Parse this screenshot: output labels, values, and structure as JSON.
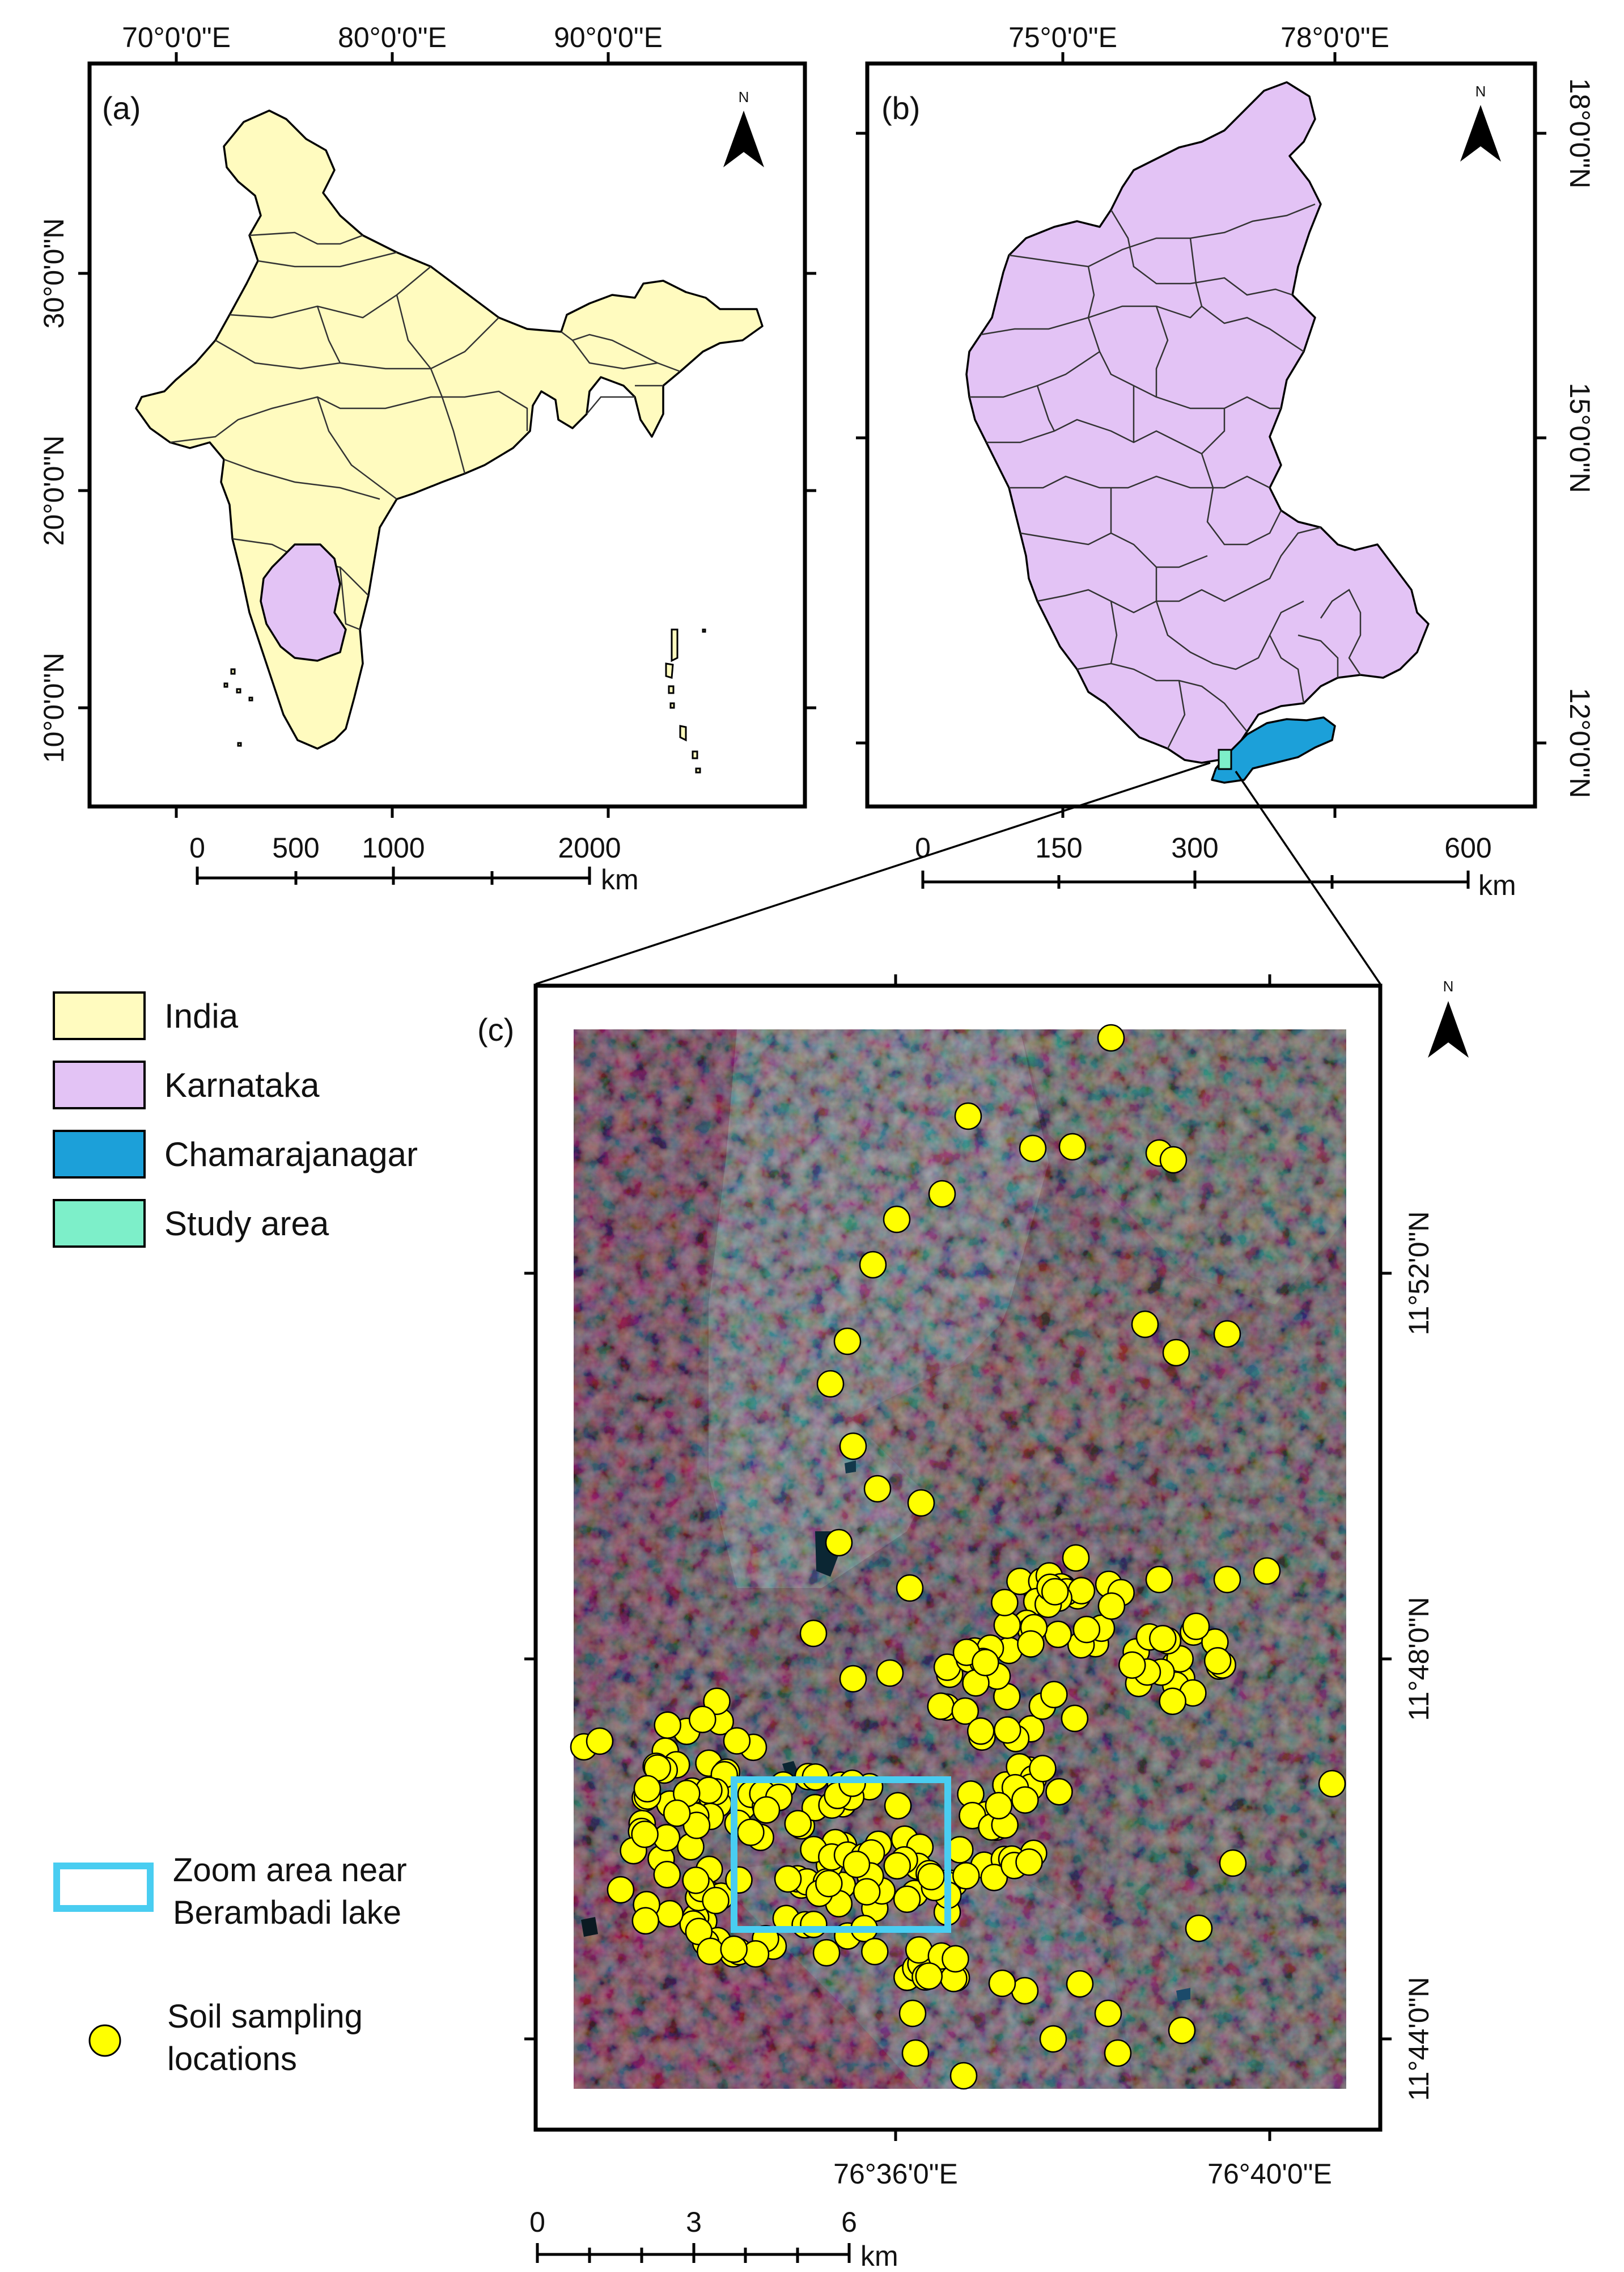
{
  "colors": {
    "india": "#FFFBBF",
    "karnataka": "#E3C3F5",
    "chamarajanagar": "#1CA0D9",
    "study_area": "#7DEFC9",
    "zoom_box": "#49CDF1",
    "sample_point": "#FFFF00",
    "image_base": "#6B5A60"
  },
  "panel_a": {
    "label": "(a)",
    "north": "N",
    "lon_ticks": [
      "70°0'0\"E",
      "80°0'0\"E",
      "90°0'0\"E"
    ],
    "lat_ticks": [
      "30°0'0\"N",
      "20°0'0\"N",
      "10°0'0\"N"
    ],
    "scale_ticks": [
      "0",
      "500",
      "1000",
      "2000"
    ],
    "scale_unit": "km"
  },
  "panel_b": {
    "label": "(b)",
    "north": "N",
    "lon_ticks": [
      "75°0'0\"E",
      "78°0'0\"E"
    ],
    "lat_ticks": [
      "18°0'0\"N",
      "15°0'0\"N",
      "12°0'0\"N"
    ],
    "scale_ticks": [
      "0",
      "150",
      "300",
      "600"
    ],
    "scale_unit": "km"
  },
  "panel_c": {
    "label": "(c)",
    "north": "N",
    "lon_ticks": [
      "76°36'0\"E",
      "76°40'0\"E"
    ],
    "lat_ticks": [
      "11°52'0\"N",
      "11°48'0\"N",
      "11°44'0\"N"
    ],
    "scale_ticks": [
      "0",
      "3",
      "6"
    ],
    "scale_unit": "km"
  },
  "legend": {
    "india": "India",
    "karnataka": "Karnataka",
    "chamarajanagar": "Chamarajanagar",
    "study_area": "Study area",
    "zoom_line1": "Zoom area near",
    "zoom_line2": "Berambadi lake",
    "soil_line1": "Soil sampling",
    "soil_line2": "locations"
  }
}
